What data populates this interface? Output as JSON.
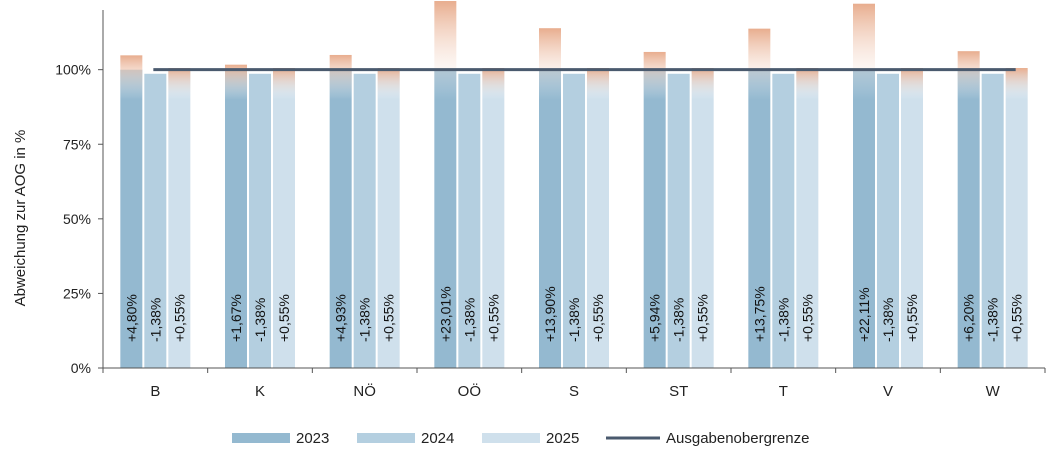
{
  "chart_data": {
    "type": "bar",
    "ylabel": "Abweichung zur AOG in %",
    "ylim": [
      0,
      1.2
    ],
    "yticks": [
      {
        "value": 0,
        "label": "0%"
      },
      {
        "value": 0.25,
        "label": "25%"
      },
      {
        "value": 0.5,
        "label": "50%"
      },
      {
        "value": 0.75,
        "label": "75%"
      },
      {
        "value": 1.0,
        "label": "100%"
      }
    ],
    "categories": [
      "B",
      "K",
      "NÖ",
      "OÖ",
      "S",
      "ST",
      "T",
      "V",
      "W"
    ],
    "series": [
      {
        "name": "2023",
        "color": "#94b9d0",
        "values": [
          1.048,
          1.0167,
          1.0493,
          1.2301,
          1.139,
          1.0594,
          1.1375,
          1.2211,
          1.062
        ],
        "labels": [
          "+4,80%",
          "+1,67%",
          "+4,93%",
          "+23,01%",
          "+13,90%",
          "+5,94%",
          "+13,75%",
          "+22,11%",
          "+6,20%"
        ]
      },
      {
        "name": "2024",
        "color": "#b4cfe0",
        "values": [
          0.9862,
          0.9862,
          0.9862,
          0.9862,
          0.9862,
          0.9862,
          0.9862,
          0.9862,
          0.9862
        ],
        "labels": [
          "-1,38%",
          "-1,38%",
          "-1,38%",
          "-1,38%",
          "-1,38%",
          "-1,38%",
          "-1,38%",
          "-1,38%",
          "-1,38%"
        ]
      },
      {
        "name": "2025",
        "color": "#cfe0ec",
        "values": [
          1.0055,
          1.0055,
          1.0055,
          1.0055,
          1.0055,
          1.0055,
          1.0055,
          1.0055,
          1.0055
        ],
        "labels": [
          "+0,55%",
          "+0,55%",
          "+0,55%",
          "+0,55%",
          "+0,55%",
          "+0,55%",
          "+0,55%",
          "+0,55%",
          "+0,55%"
        ]
      }
    ],
    "reference_line": {
      "name": "Ausgabenobergrenze",
      "value": 1.0,
      "color": "#4a5a6e"
    },
    "overshoot_color": "#e8ad8e",
    "legend": {
      "placement": "bottom"
    },
    "grid": false
  }
}
